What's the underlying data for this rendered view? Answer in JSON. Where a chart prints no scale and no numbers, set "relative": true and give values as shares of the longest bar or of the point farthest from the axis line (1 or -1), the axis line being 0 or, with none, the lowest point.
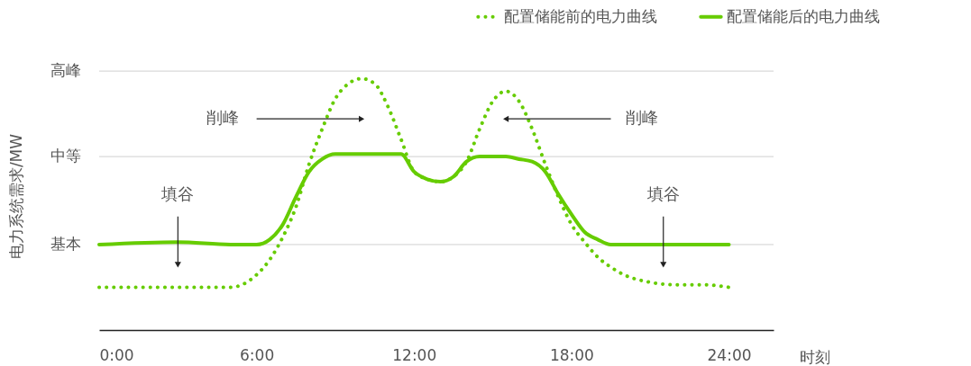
{
  "chart_data": {
    "type": "line",
    "xlabel": "时刻",
    "ylabel": "电力系统需求/MW",
    "relative": true,
    "x": [
      0,
      3,
      5,
      6,
      6.5,
      7,
      7.5,
      8,
      8.5,
      9,
      9.5,
      10,
      10.5,
      11,
      11.5,
      12,
      12.5,
      13,
      13.5,
      14,
      14.5,
      15,
      15.5,
      16,
      16.5,
      17,
      17.5,
      18,
      18.5,
      19,
      19.5,
      20,
      21,
      22,
      23,
      24
    ],
    "series": [
      {
        "name": "配置储能前的电力曲线",
        "color": "#66cc00",
        "line_style": "dotted",
        "values": [
          0.17,
          0.17,
          0.17,
          0.22,
          0.28,
          0.37,
          0.49,
          0.66,
          0.8,
          0.92,
          0.98,
          1,
          0.98,
          0.89,
          0.76,
          0.63,
          0.6,
          0.59,
          0.61,
          0.67,
          0.8,
          0.91,
          0.95,
          0.91,
          0.8,
          0.66,
          0.53,
          0.42,
          0.35,
          0.29,
          0.25,
          0.22,
          0.19,
          0.18,
          0.18,
          0.17
        ]
      },
      {
        "name": "配置储能后的电力曲线",
        "color": "#66cc00",
        "line_style": "solid",
        "values": [
          0.34,
          0.35,
          0.34,
          0.34,
          0.36,
          0.42,
          0.53,
          0.63,
          0.68,
          0.7,
          0.7,
          0.7,
          0.7,
          0.7,
          0.7,
          0.63,
          0.6,
          0.59,
          0.61,
          0.67,
          0.69,
          0.69,
          0.69,
          0.68,
          0.67,
          0.63,
          0.54,
          0.46,
          0.39,
          0.36,
          0.34,
          0.34,
          0.34,
          0.34,
          0.34,
          0.34
        ]
      }
    ],
    "xlim": [
      0,
      25.7
    ],
    "xticks": [
      {
        "value": 0,
        "label": "0:00"
      },
      {
        "value": 6,
        "label": "6:00"
      },
      {
        "value": 12,
        "label": "12:00"
      },
      {
        "value": 18,
        "label": "18:00"
      },
      {
        "value": 24,
        "label": "24:00"
      }
    ],
    "ref_lines": [
      {
        "axis": "y",
        "value": 0.34,
        "label": "基本",
        "color": "#d0d0d0"
      },
      {
        "axis": "y",
        "value": 0.69,
        "label": "中等",
        "color": "#d0d0d0"
      },
      {
        "axis": "y",
        "value": 1.03,
        "label": "高峰",
        "color": "#d0d0d0"
      }
    ],
    "legend": "top right",
    "annotations": [
      {
        "text": "削峰",
        "x": 10,
        "y": 0.84
      },
      {
        "text": "削峰",
        "x": 15.5,
        "y": 0.84
      },
      {
        "text": "填谷",
        "x": 3,
        "y": 0.26
      },
      {
        "text": "填谷",
        "x": 21.5,
        "y": 0.26
      }
    ]
  }
}
